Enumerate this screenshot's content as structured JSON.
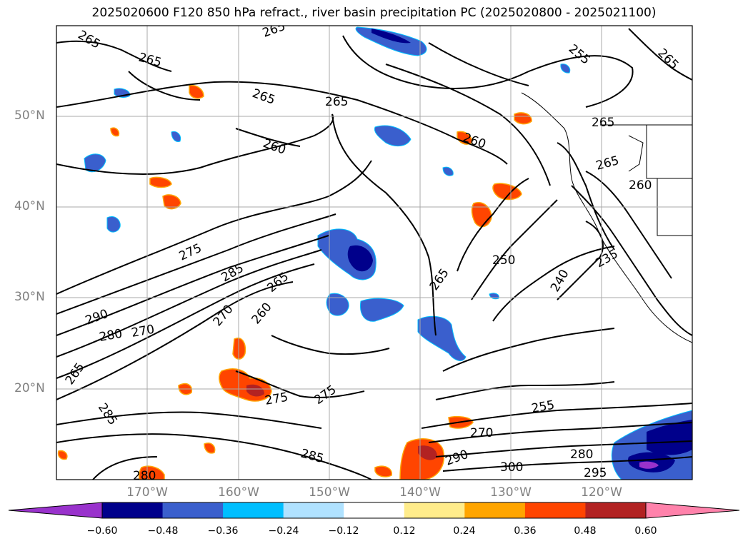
{
  "title": "2025020600 F120 850 hPa refract., river basin precipitation PC (2025020800 - 2025021100)",
  "latitude_labels": [
    "50°N",
    "40°N",
    "30°N",
    "20°N"
  ],
  "longitude_labels": [
    "170°W",
    "160°W",
    "150°W",
    "140°W",
    "130°W",
    "120°W"
  ],
  "contour_labels": [
    "265",
    "265",
    "265",
    "265",
    "260",
    "265",
    "265",
    "260",
    "255",
    "265",
    "265",
    "260",
    "275",
    "285",
    "265",
    "250",
    "240",
    "235",
    "290",
    "280",
    "270",
    "260",
    "270",
    "265",
    "275",
    "275",
    "255",
    "285",
    "285",
    "290",
    "300",
    "280",
    "295",
    "280",
    "270",
    "265"
  ],
  "colorbar": {
    "tick_labels": [
      "−0.60",
      "−0.48",
      "−0.36",
      "−0.24",
      "−0.12",
      "0.12",
      "0.24",
      "0.36",
      "0.48",
      "0.60"
    ],
    "colors": [
      "#9932cc",
      "#00008b",
      "#3a5fcd",
      "#00bfff",
      "#b0e2ff",
      "#ffffff",
      "#ffec8b",
      "#ffa500",
      "#ff4500",
      "#b22222",
      "#ff82ab"
    ]
  },
  "colors": {
    "grid": "#a9a9a9",
    "label": "#808080",
    "contour": "#000000"
  }
}
